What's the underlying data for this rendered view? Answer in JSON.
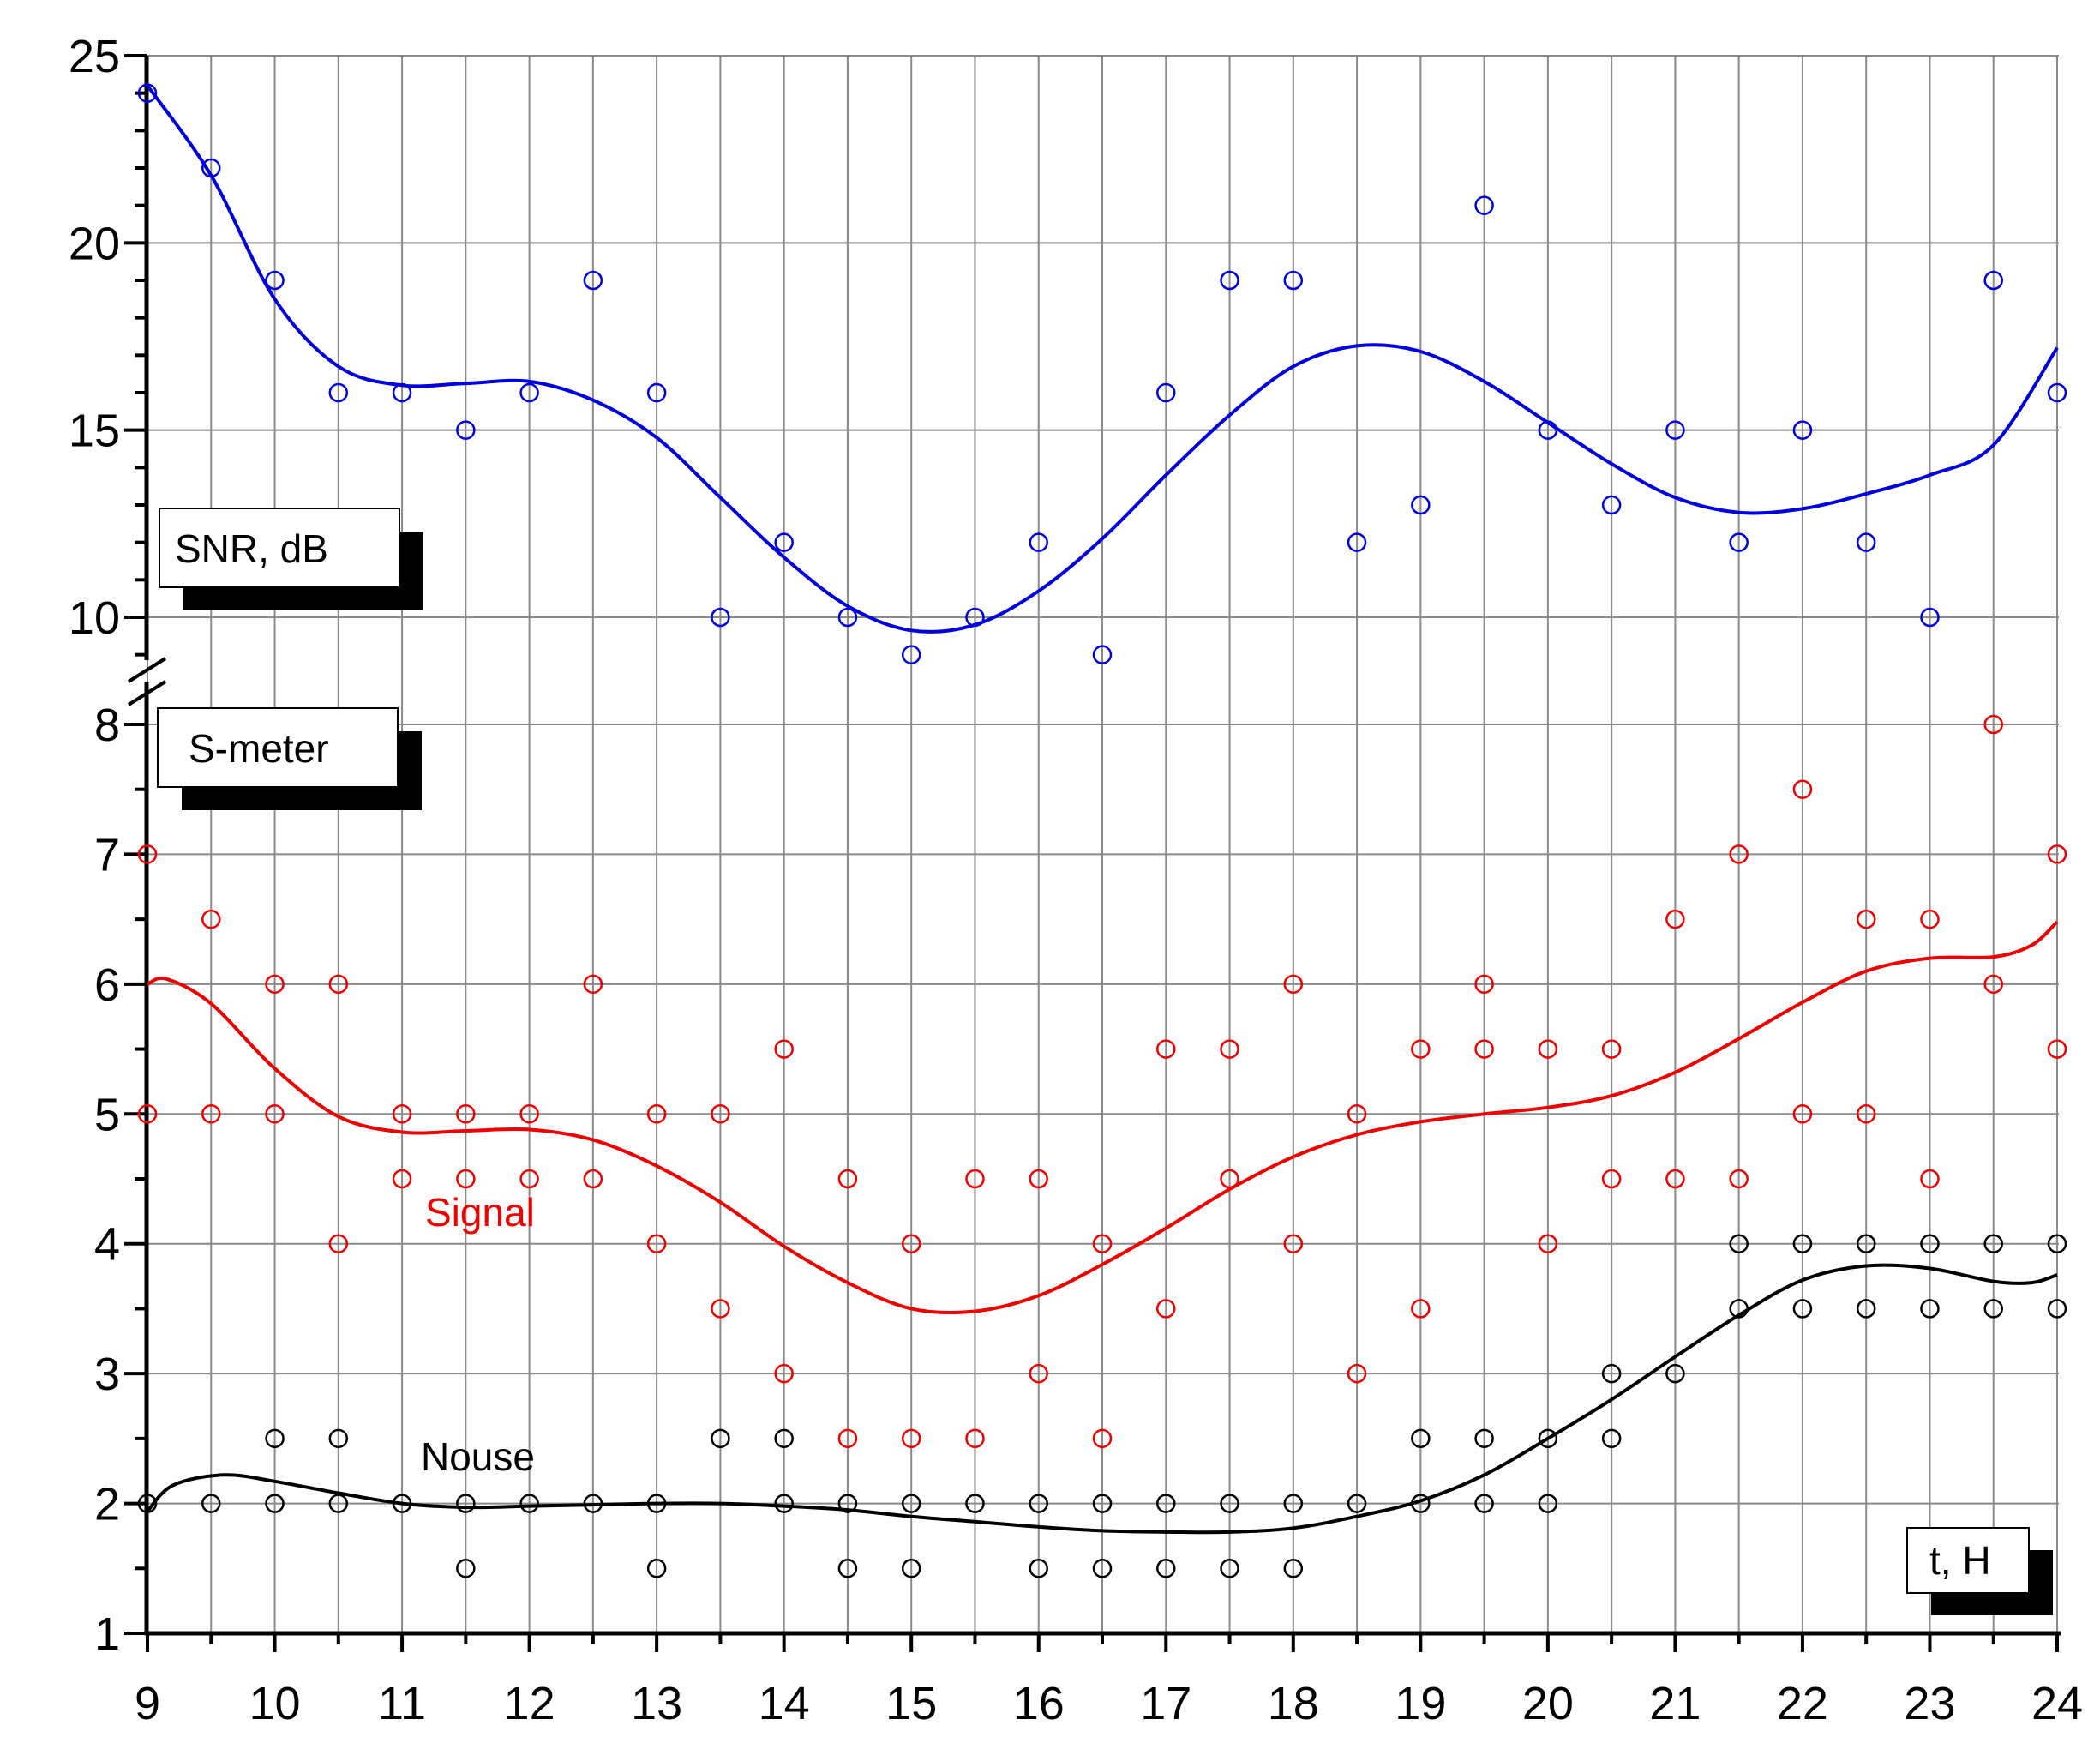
{
  "chart_data": {
    "type": "scatter",
    "x_ticks": [
      "9",
      "10",
      "11",
      "12",
      "13",
      "14",
      "15",
      "16",
      "17",
      "18",
      "19",
      "20",
      "21",
      "22",
      "23",
      "24"
    ],
    "xlim": [
      9,
      24
    ],
    "snr_axis": {
      "ticks": [
        "10",
        "15",
        "20",
        "25"
      ],
      "ylim": [
        8.5,
        25
      ]
    },
    "smeter_axis": {
      "ticks": [
        "1",
        "2",
        "3",
        "4",
        "5",
        "6",
        "7",
        "8"
      ],
      "ylim": [
        1,
        8.3
      ]
    },
    "boxes": {
      "snr": "SNR, dB",
      "smeter": "S-meter",
      "time": "t, H"
    },
    "grid": true,
    "colors": {
      "snr": "#0000dd",
      "signal": "#ee0000",
      "noise": "#000000"
    },
    "series": [
      {
        "name": "",
        "axis": "snr",
        "points": [
          [
            9,
            24
          ],
          [
            9.5,
            22
          ],
          [
            10,
            19
          ],
          [
            10.5,
            16
          ],
          [
            11,
            16
          ],
          [
            11.5,
            15
          ],
          [
            12,
            16
          ],
          [
            12.5,
            19
          ],
          [
            13,
            16
          ],
          [
            13.5,
            10
          ],
          [
            14,
            12
          ],
          [
            14.5,
            10
          ],
          [
            15,
            9
          ],
          [
            15.5,
            10
          ],
          [
            16,
            12
          ],
          [
            16.5,
            9
          ],
          [
            17,
            16
          ],
          [
            17.5,
            19
          ],
          [
            18,
            19
          ],
          [
            18.5,
            12
          ],
          [
            19,
            13
          ],
          [
            19.5,
            21
          ],
          [
            20,
            15
          ],
          [
            20.5,
            13
          ],
          [
            21,
            15
          ],
          [
            21.5,
            12
          ],
          [
            22,
            15
          ],
          [
            22.5,
            12
          ],
          [
            23,
            10
          ],
          [
            23.5,
            19
          ],
          [
            24,
            16
          ]
        ],
        "fit": [
          [
            9,
            24.2
          ],
          [
            9.5,
            21.8
          ],
          [
            10,
            18.5
          ],
          [
            10.5,
            16.7
          ],
          [
            11,
            16.2
          ],
          [
            11.5,
            16.25
          ],
          [
            12,
            16.3
          ],
          [
            12.5,
            15.8
          ],
          [
            13,
            14.8
          ],
          [
            13.5,
            13.2
          ],
          [
            14,
            11.6
          ],
          [
            14.5,
            10.3
          ],
          [
            15,
            9.65
          ],
          [
            15.5,
            9.8
          ],
          [
            16,
            10.7
          ],
          [
            16.5,
            12.1
          ],
          [
            17,
            13.8
          ],
          [
            17.5,
            15.4
          ],
          [
            18,
            16.7
          ],
          [
            18.5,
            17.25
          ],
          [
            19,
            17.1
          ],
          [
            19.5,
            16.3
          ],
          [
            20,
            15.2
          ],
          [
            20.5,
            14.1
          ],
          [
            21,
            13.2
          ],
          [
            21.5,
            12.8
          ],
          [
            22,
            12.9
          ],
          [
            22.5,
            13.3
          ],
          [
            23,
            13.8
          ],
          [
            23.5,
            14.6
          ],
          [
            24,
            17.2
          ]
        ]
      },
      {
        "name": "Signal",
        "axis": "smeter",
        "points": [
          [
            9,
            7
          ],
          [
            9,
            5
          ],
          [
            9.5,
            6.5
          ],
          [
            9.5,
            5
          ],
          [
            10,
            6
          ],
          [
            10,
            5
          ],
          [
            10.5,
            6
          ],
          [
            10.5,
            4
          ],
          [
            11,
            5
          ],
          [
            11,
            4.5
          ],
          [
            11.5,
            5
          ],
          [
            11.5,
            4.5
          ],
          [
            12,
            5
          ],
          [
            12,
            4.5
          ],
          [
            12.5,
            6
          ],
          [
            12.5,
            4.5
          ],
          [
            13,
            5
          ],
          [
            13,
            4
          ],
          [
            13.5,
            5
          ],
          [
            13.5,
            3.5
          ],
          [
            14,
            5.5
          ],
          [
            14,
            3
          ],
          [
            14.5,
            4.5
          ],
          [
            14.5,
            2.5
          ],
          [
            15,
            4
          ],
          [
            15,
            2.5
          ],
          [
            15.5,
            4.5
          ],
          [
            15.5,
            2.5
          ],
          [
            16,
            4.5
          ],
          [
            16,
            3
          ],
          [
            16.5,
            4
          ],
          [
            16.5,
            2.5
          ],
          [
            17,
            5.5
          ],
          [
            17,
            3.5
          ],
          [
            17.5,
            5.5
          ],
          [
            17.5,
            4.5
          ],
          [
            18,
            6
          ],
          [
            18,
            4
          ],
          [
            18.5,
            5
          ],
          [
            18.5,
            3
          ],
          [
            19,
            5.5
          ],
          [
            19,
            3.5
          ],
          [
            19.5,
            6
          ],
          [
            19.5,
            5.5
          ],
          [
            20,
            5.5
          ],
          [
            20,
            4
          ],
          [
            20.5,
            5.5
          ],
          [
            20.5,
            4.5
          ],
          [
            21,
            6.5
          ],
          [
            21,
            4.5
          ],
          [
            21.5,
            7
          ],
          [
            21.5,
            4.5
          ],
          [
            22,
            7.5
          ],
          [
            22,
            5
          ],
          [
            22.5,
            6.5
          ],
          [
            22.5,
            5
          ],
          [
            23,
            6.5
          ],
          [
            23,
            4.5
          ],
          [
            23.5,
            8
          ],
          [
            23.5,
            6
          ],
          [
            24,
            7
          ],
          [
            24,
            5.5
          ]
        ],
        "fit": [
          [
            9,
            6
          ],
          [
            9.15,
            6.04
          ],
          [
            9.5,
            5.85
          ],
          [
            10,
            5.35
          ],
          [
            10.5,
            4.98
          ],
          [
            11,
            4.86
          ],
          [
            11.5,
            4.87
          ],
          [
            12,
            4.88
          ],
          [
            12.5,
            4.8
          ],
          [
            13,
            4.6
          ],
          [
            13.5,
            4.32
          ],
          [
            14,
            3.98
          ],
          [
            14.5,
            3.7
          ],
          [
            15,
            3.5
          ],
          [
            15.5,
            3.48
          ],
          [
            16,
            3.6
          ],
          [
            16.5,
            3.84
          ],
          [
            17,
            4.12
          ],
          [
            17.5,
            4.42
          ],
          [
            18,
            4.67
          ],
          [
            18.5,
            4.84
          ],
          [
            19,
            4.94
          ],
          [
            19.5,
            5.0
          ],
          [
            20,
            5.05
          ],
          [
            20.5,
            5.14
          ],
          [
            21,
            5.32
          ],
          [
            21.5,
            5.58
          ],
          [
            22,
            5.86
          ],
          [
            22.5,
            6.1
          ],
          [
            23,
            6.2
          ],
          [
            23.5,
            6.21
          ],
          [
            23.8,
            6.3
          ],
          [
            24,
            6.48
          ]
        ]
      },
      {
        "name": "Nouse",
        "axis": "smeter",
        "points": [
          [
            9,
            2
          ],
          [
            9.5,
            2
          ],
          [
            10,
            2.5
          ],
          [
            10,
            2
          ],
          [
            10.5,
            2.5
          ],
          [
            10.5,
            2
          ],
          [
            11,
            2
          ],
          [
            11.5,
            2
          ],
          [
            11.5,
            1.5
          ],
          [
            12,
            2
          ],
          [
            12.5,
            2
          ],
          [
            13,
            2
          ],
          [
            13,
            1.5
          ],
          [
            13.5,
            2.5
          ],
          [
            14,
            2.5
          ],
          [
            14,
            2
          ],
          [
            14.5,
            2
          ],
          [
            14.5,
            1.5
          ],
          [
            15,
            2
          ],
          [
            15,
            1.5
          ],
          [
            15.5,
            2
          ],
          [
            16,
            2
          ],
          [
            16,
            1.5
          ],
          [
            16.5,
            2
          ],
          [
            16.5,
            1.5
          ],
          [
            17,
            2
          ],
          [
            17,
            1.5
          ],
          [
            17.5,
            2
          ],
          [
            17.5,
            1.5
          ],
          [
            18,
            2
          ],
          [
            18,
            1.5
          ],
          [
            18.5,
            2
          ],
          [
            19,
            2.5
          ],
          [
            19,
            2
          ],
          [
            19.5,
            2.5
          ],
          [
            19.5,
            2
          ],
          [
            20,
            2.5
          ],
          [
            20,
            2
          ],
          [
            20.5,
            3
          ],
          [
            20.5,
            2.5
          ],
          [
            21,
            3
          ],
          [
            21.5,
            4
          ],
          [
            21.5,
            3.5
          ],
          [
            22,
            4
          ],
          [
            22,
            3.5
          ],
          [
            22.5,
            4
          ],
          [
            22.5,
            3.5
          ],
          [
            23,
            4
          ],
          [
            23,
            3.5
          ],
          [
            23.5,
            4
          ],
          [
            23.5,
            3.5
          ],
          [
            24,
            4
          ],
          [
            24,
            3.5
          ]
        ],
        "fit": [
          [
            9,
            1.94
          ],
          [
            9.2,
            2.14
          ],
          [
            9.6,
            2.22
          ],
          [
            10,
            2.17
          ],
          [
            10.5,
            2.08
          ],
          [
            11,
            2.0
          ],
          [
            11.5,
            1.97
          ],
          [
            12,
            1.98
          ],
          [
            12.5,
            1.99
          ],
          [
            13,
            2.0
          ],
          [
            13.5,
            2.0
          ],
          [
            14,
            1.98
          ],
          [
            14.5,
            1.95
          ],
          [
            15,
            1.9
          ],
          [
            15.5,
            1.86
          ],
          [
            16,
            1.82
          ],
          [
            16.5,
            1.79
          ],
          [
            17,
            1.78
          ],
          [
            17.5,
            1.78
          ],
          [
            18,
            1.81
          ],
          [
            18.5,
            1.9
          ],
          [
            19,
            2.02
          ],
          [
            19.5,
            2.22
          ],
          [
            20,
            2.5
          ],
          [
            20.5,
            2.8
          ],
          [
            21,
            3.13
          ],
          [
            21.5,
            3.45
          ],
          [
            22,
            3.72
          ],
          [
            22.5,
            3.83
          ],
          [
            23,
            3.81
          ],
          [
            23.5,
            3.71
          ],
          [
            23.8,
            3.7
          ],
          [
            24,
            3.76
          ]
        ]
      }
    ]
  }
}
